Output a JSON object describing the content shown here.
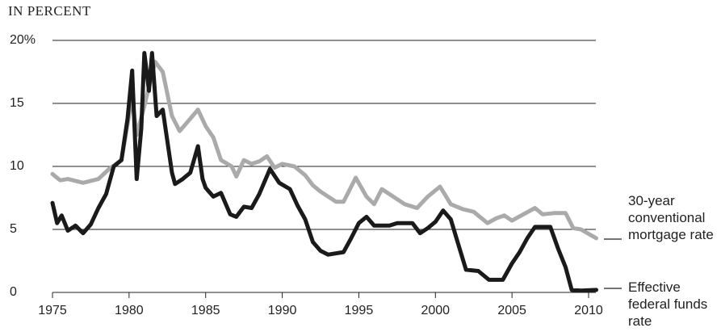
{
  "chart_data": {
    "type": "line",
    "title": "IN PERCENT",
    "xlim": [
      1975,
      2010
    ],
    "xticks": [
      1975,
      1980,
      1985,
      1990,
      1995,
      2000,
      2005,
      2010
    ],
    "ylim": [
      0,
      20
    ],
    "yticks": [
      0,
      5,
      10,
      15,
      {
        "value": 20,
        "label": "20%"
      }
    ],
    "grid": true,
    "series": [
      {
        "name": "30-year conventional mortgage rate",
        "color": "#aaaaaa",
        "x": [
          1975.0,
          1975.5,
          1976.0,
          1977.0,
          1978.0,
          1978.7,
          1979.5,
          1980.2,
          1980.5,
          1981.0,
          1981.7,
          1982.2,
          1982.8,
          1983.3,
          1983.8,
          1984.5,
          1985.0,
          1985.5,
          1986.0,
          1986.7,
          1987.0,
          1987.5,
          1988.0,
          1988.5,
          1989.0,
          1989.5,
          1990.0,
          1990.8,
          1991.5,
          1992.0,
          1992.5,
          1993.5,
          1994.0,
          1994.8,
          1995.5,
          1996.0,
          1996.5,
          1997.0,
          1998.0,
          1998.8,
          1999.5,
          2000.3,
          2001.0,
          2001.8,
          2002.5,
          2003.4,
          2004.0,
          2004.5,
          2005.0,
          2006.5,
          2007.0,
          2007.8,
          2008.5,
          2009.0,
          2009.5,
          2010.5
        ],
        "values": [
          9.4,
          8.9,
          9.0,
          8.7,
          9.0,
          9.8,
          10.5,
          15.5,
          12.5,
          14.8,
          18.3,
          17.5,
          14.0,
          12.8,
          13.5,
          14.5,
          13.2,
          12.3,
          10.5,
          10.0,
          9.2,
          10.5,
          10.2,
          10.4,
          10.8,
          9.9,
          10.2,
          10.0,
          9.3,
          8.5,
          8.0,
          7.2,
          7.2,
          9.1,
          7.6,
          7.0,
          8.2,
          7.8,
          7.0,
          6.7,
          7.6,
          8.4,
          7.0,
          6.6,
          6.4,
          5.5,
          5.9,
          6.1,
          5.7,
          6.7,
          6.2,
          6.3,
          6.3,
          5.1,
          5.0,
          4.3
        ]
      },
      {
        "name": "Effective federal funds rate",
        "color": "#1a1a1a",
        "x": [
          1975.0,
          1975.3,
          1975.6,
          1976.0,
          1976.5,
          1977.0,
          1977.5,
          1978.0,
          1978.5,
          1979.0,
          1979.5,
          1979.9,
          1980.2,
          1980.5,
          1980.8,
          1981.0,
          1981.3,
          1981.5,
          1981.8,
          1982.2,
          1982.5,
          1982.8,
          1983.0,
          1983.5,
          1984.0,
          1984.5,
          1984.8,
          1985.0,
          1985.5,
          1986.0,
          1986.6,
          1987.0,
          1987.5,
          1988.0,
          1988.5,
          1989.2,
          1989.8,
          1990.5,
          1991.0,
          1991.5,
          1992.0,
          1992.5,
          1993.0,
          1994.0,
          1994.5,
          1995.0,
          1995.5,
          1996.0,
          1997.0,
          1997.5,
          1998.5,
          1999.0,
          1999.5,
          2000.0,
          2000.5,
          2001.0,
          2001.5,
          2002.0,
          2002.8,
          2003.5,
          2004.4,
          2005.0,
          2005.5,
          2006.0,
          2006.5,
          2007.5,
          2008.0,
          2008.5,
          2008.9,
          2009.5,
          2010.5
        ],
        "values": [
          7.1,
          5.5,
          6.1,
          4.9,
          5.3,
          4.7,
          5.4,
          6.7,
          7.8,
          10.0,
          10.5,
          13.8,
          17.6,
          9.0,
          13.0,
          19.0,
          16.0,
          19.0,
          14.0,
          14.5,
          12.0,
          9.5,
          8.6,
          9.0,
          9.5,
          11.6,
          9.0,
          8.3,
          7.6,
          7.9,
          6.2,
          6.0,
          6.8,
          6.7,
          7.8,
          9.8,
          8.7,
          8.2,
          6.9,
          5.8,
          4.0,
          3.3,
          3.0,
          3.2,
          4.3,
          5.5,
          6.0,
          5.3,
          5.3,
          5.5,
          5.5,
          4.7,
          5.1,
          5.6,
          6.5,
          5.8,
          3.8,
          1.8,
          1.7,
          1.0,
          1.0,
          2.3,
          3.2,
          4.3,
          5.2,
          5.2,
          3.5,
          2.0,
          0.2,
          0.15,
          0.2
        ]
      }
    ]
  }
}
